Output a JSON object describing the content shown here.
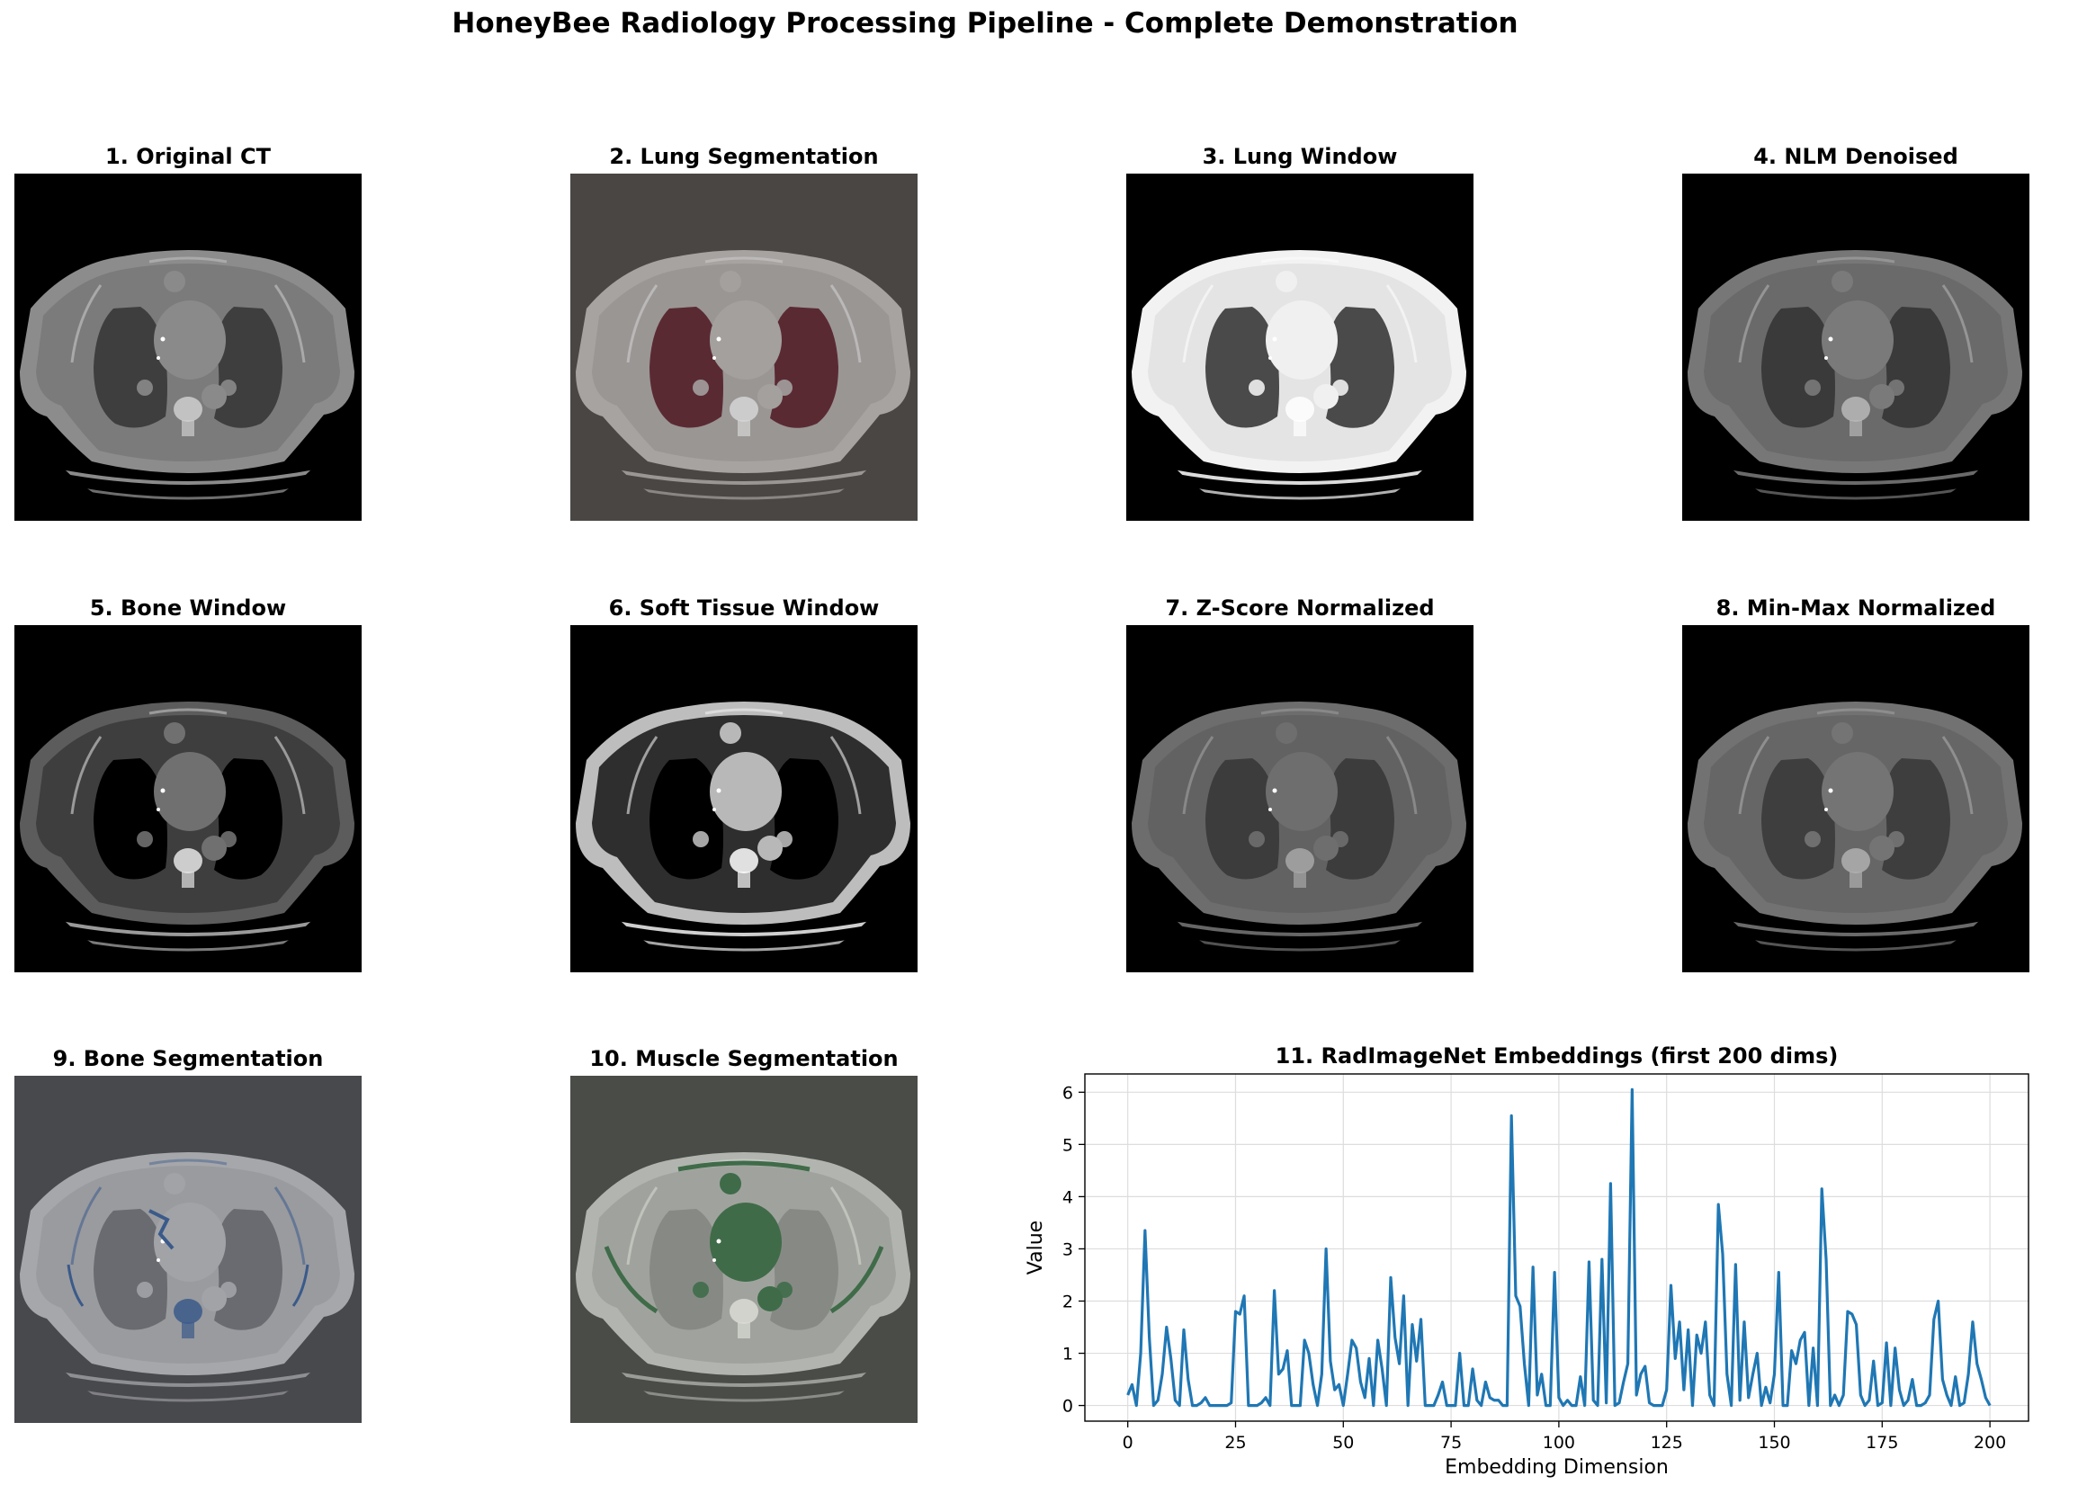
{
  "figure": {
    "title": "HoneyBee Radiology Processing Pipeline - Complete Demonstration"
  },
  "panels": [
    {
      "title": "1. Original CT",
      "variant": "original",
      "overlay": "",
      "bg": "#000000"
    },
    {
      "title": "2. Lung Segmentation",
      "variant": "lungseg",
      "overlay": "#6b1f2a",
      "bg": "#4a4644"
    },
    {
      "title": "3. Lung Window",
      "variant": "lungwin",
      "overlay": "",
      "bg": "#000000"
    },
    {
      "title": "4. NLM Denoised",
      "variant": "denoised",
      "overlay": "",
      "bg": "#000000"
    },
    {
      "title": "5. Bone Window",
      "variant": "bone",
      "overlay": "",
      "bg": "#000000"
    },
    {
      "title": "6. Soft Tissue Window",
      "variant": "soft",
      "overlay": "",
      "bg": "#000000"
    },
    {
      "title": "7. Z-Score Normalized",
      "variant": "zscore",
      "overlay": "",
      "bg": "#000000"
    },
    {
      "title": "8. Min-Max Normalized",
      "variant": "minmax",
      "overlay": "",
      "bg": "#000000"
    },
    {
      "title": "9. Bone Segmentation",
      "variant": "boneseg",
      "overlay": "#2d4a78",
      "bg": "#48494d"
    },
    {
      "title": "10. Muscle Segmentation",
      "variant": "muscleseg",
      "overlay": "#2f5a3a",
      "bg": "#4a4c48"
    }
  ],
  "chart_data": {
    "type": "line",
    "title": "11. RadImageNet Embeddings (first 200 dims)",
    "xlabel": "Embedding Dimension",
    "ylabel": "Value",
    "xlim": [
      -9.95,
      208.95
    ],
    "ylim": [
      -0.3,
      6.35
    ],
    "xticks": [
      0,
      25,
      50,
      75,
      100,
      125,
      150,
      175,
      200
    ],
    "yticks": [
      0,
      1,
      2,
      3,
      4,
      5,
      6
    ],
    "grid": true,
    "series": [
      {
        "color": "#1f77b4",
        "values": [
          0.2,
          0.4,
          0.0,
          1.0,
          3.35,
          1.3,
          0.0,
          0.1,
          0.6,
          1.5,
          0.9,
          0.1,
          0.0,
          1.45,
          0.5,
          0.0,
          0.0,
          0.05,
          0.15,
          0.0,
          0.0,
          0.0,
          0.0,
          0.0,
          0.05,
          1.8,
          1.75,
          2.1,
          0.0,
          0.0,
          0.0,
          0.05,
          0.15,
          0.0,
          2.2,
          0.6,
          0.7,
          1.05,
          0.0,
          0.0,
          0.0,
          1.25,
          1.0,
          0.4,
          0.0,
          0.6,
          3.0,
          0.85,
          0.3,
          0.4,
          0.0,
          0.6,
          1.25,
          1.1,
          0.45,
          0.15,
          0.9,
          0.0,
          1.25,
          0.7,
          0.0,
          2.45,
          1.3,
          0.8,
          2.1,
          0.0,
          1.55,
          0.85,
          1.65,
          0.0,
          0.0,
          0.0,
          0.2,
          0.45,
          0.0,
          0.0,
          0.0,
          1.0,
          0.0,
          0.0,
          0.7,
          0.1,
          0.0,
          0.45,
          0.15,
          0.1,
          0.1,
          0.0,
          0.0,
          5.55,
          2.1,
          1.9,
          0.8,
          0.0,
          2.65,
          0.2,
          0.6,
          0.0,
          0.0,
          2.55,
          0.15,
          0.0,
          0.1,
          0.0,
          0.0,
          0.55,
          0.0,
          2.75,
          0.1,
          0.0,
          2.8,
          0.05,
          4.25,
          0.0,
          0.05,
          0.45,
          0.8,
          6.05,
          0.2,
          0.6,
          0.75,
          0.05,
          0.0,
          0.0,
          0.0,
          0.3,
          2.3,
          0.9,
          1.6,
          0.3,
          1.45,
          0.0,
          1.35,
          1.0,
          1.6,
          0.2,
          0.0,
          3.85,
          2.9,
          0.6,
          0.0,
          2.7,
          0.1,
          1.6,
          0.15,
          0.6,
          1.0,
          0.0,
          0.35,
          0.05,
          0.6,
          2.55,
          0.0,
          0.0,
          1.05,
          0.8,
          1.25,
          1.4,
          0.0,
          1.1,
          0.0,
          4.15,
          2.8,
          0.0,
          0.2,
          0.0,
          0.2,
          1.8,
          1.75,
          1.55,
          0.2,
          0.0,
          0.1,
          0.85,
          0.0,
          0.05,
          1.2,
          0.0,
          1.1,
          0.3,
          0.0,
          0.1,
          0.5,
          0.0,
          0.0,
          0.05,
          0.2,
          1.65,
          2.0,
          0.5,
          0.2,
          0.0,
          0.55,
          0.0,
          0.05,
          0.6,
          1.6,
          0.8,
          0.5,
          0.15,
          0.0
        ]
      }
    ]
  }
}
